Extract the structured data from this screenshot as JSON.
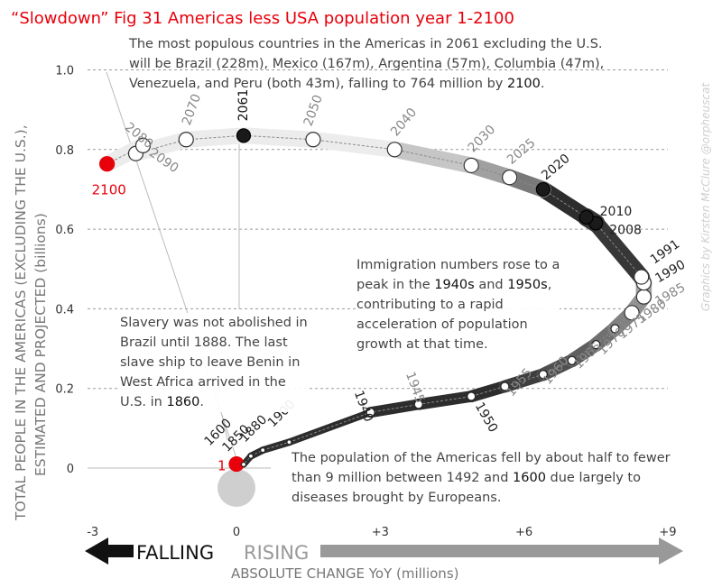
{
  "chart_data": {
    "type": "scatter",
    "title": "“Slowdown” Fig 31 Americas less USA population year 1-2100",
    "xlabel": "ABSOLUTE CHANGE YoY (millions)",
    "ylabel": [
      "TOTAL PEOPLE IN THE AMERICAS (EXCLUDING THE U.S.),",
      "ESTIMATED AND PROJECTED (billions)"
    ],
    "xlim": [
      -3,
      9
    ],
    "ylim": [
      0,
      1.0
    ],
    "x_ticks": [
      "-3",
      "0",
      "+3",
      "+6",
      "+9"
    ],
    "y_ticks": [
      "0",
      "0.2",
      "0.4",
      "0.6",
      "0.8",
      "1.0"
    ],
    "direction_labels": {
      "falling": "FALLING",
      "rising": "RISING"
    },
    "credit": "Graphics by Kirsten McClure @orpheuscat",
    "series": [
      {
        "points": [
          {
            "year": "1",
            "x": 0.0,
            "y": 0.01
          },
          {
            "year": "1600",
            "x": 0.15,
            "y": 0.009
          },
          {
            "year": "1850",
            "x": 0.3,
            "y": 0.03
          },
          {
            "year": "1880",
            "x": 0.55,
            "y": 0.045
          },
          {
            "year": "1900",
            "x": 1.1,
            "y": 0.065
          },
          {
            "year": "1940",
            "x": 2.8,
            "y": 0.14
          },
          {
            "year": "1945",
            "x": 3.8,
            "y": 0.16
          },
          {
            "year": "1950",
            "x": 4.9,
            "y": 0.18
          },
          {
            "year": "1955",
            "x": 5.6,
            "y": 0.205
          },
          {
            "year": "1960",
            "x": 6.4,
            "y": 0.235
          },
          {
            "year": "1965",
            "x": 7.0,
            "y": 0.27
          },
          {
            "year": "1970",
            "x": 7.5,
            "y": 0.31
          },
          {
            "year": "1975",
            "x": 7.9,
            "y": 0.35
          },
          {
            "year": "1980",
            "x": 8.25,
            "y": 0.39
          },
          {
            "year": "1985",
            "x": 8.5,
            "y": 0.43
          },
          {
            "year": "1990",
            "x": 8.5,
            "y": 0.465
          },
          {
            "year": "1991",
            "x": 8.45,
            "y": 0.48
          },
          {
            "year": "2008",
            "x": 7.5,
            "y": 0.615
          },
          {
            "year": "2010",
            "x": 7.3,
            "y": 0.63
          },
          {
            "year": "2020",
            "x": 6.4,
            "y": 0.7
          },
          {
            "year": "2025",
            "x": 5.7,
            "y": 0.73
          },
          {
            "year": "2030",
            "x": 4.9,
            "y": 0.76
          },
          {
            "year": "2040",
            "x": 3.3,
            "y": 0.8
          },
          {
            "year": "2050",
            "x": 1.6,
            "y": 0.825
          },
          {
            "year": "2061",
            "x": 0.15,
            "y": 0.835
          },
          {
            "year": "2070",
            "x": -1.05,
            "y": 0.825
          },
          {
            "year": "2080",
            "x": -2.1,
            "y": 0.79
          },
          {
            "year": "2090",
            "x": -1.95,
            "y": 0.81
          },
          {
            "year": "2100",
            "x": -2.7,
            "y": 0.764
          }
        ]
      }
    ]
  },
  "annotations": {
    "top": [
      "The most populous countries in the Americas in 2061 excluding the U.S.",
      "will be Brazil (228m), Mexico (167m), Argentina (57m), Columbia (47m),",
      "Venezuela, and Peru (both 43m), falling to 764 million by ",
      "2100",
      "."
    ],
    "immigration": [
      "Immigration numbers rose to a",
      "peak in the ",
      "1940s",
      " and ",
      "1950s",
      ",",
      "contributing to a rapid",
      "acceleration of population",
      "growth at that time."
    ],
    "slavery": [
      "Slavery was not abolished in",
      "Brazil until 1888. The last",
      "slave ship to leave Benin in",
      "West Africa arrived in the",
      "U.S. in ",
      "1860",
      "."
    ],
    "fell": [
      "The population of the Americas fell by about half to fewer",
      "than 9 million between 1492 and ",
      "1600",
      " due largely to",
      "diseases brought by Europeans."
    ]
  },
  "colors": {
    "title": "#e8000b",
    "highlight": "#e8000b",
    "band_light": "#ececec",
    "band_dark": "#3a3a3a",
    "marker_dark": "#1a1a1a",
    "text": "#444444"
  }
}
